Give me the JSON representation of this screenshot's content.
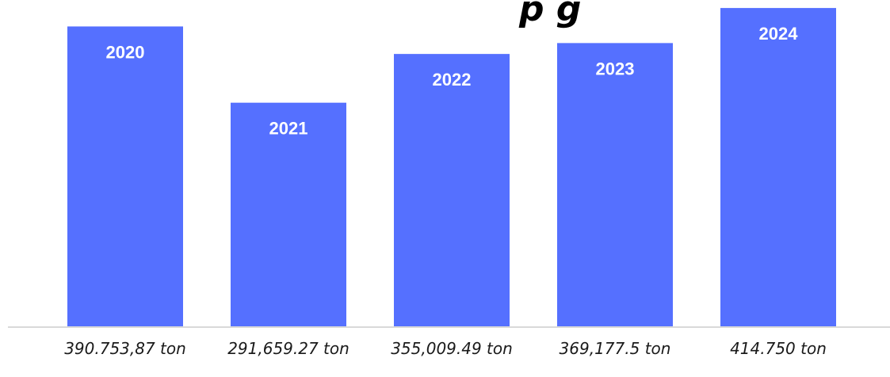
{
  "chart_data": {
    "type": "bar",
    "title_fragment": "p  g",
    "categories": [
      "2020",
      "2021",
      "2022",
      "2023",
      "2024"
    ],
    "values": [
      390753.87,
      291659.27,
      355009.49,
      369177.5,
      414750
    ],
    "value_labels": [
      "390.753,87  ton",
      "291,659.27 ton",
      "355,009.49 ton",
      "369,177.5 ton",
      "414.750 ton"
    ],
    "bar_color": "#5570FF",
    "axis_color": "#d9d9d9",
    "ylim": [
      0,
      420000
    ],
    "grid": false,
    "legend": "none"
  }
}
